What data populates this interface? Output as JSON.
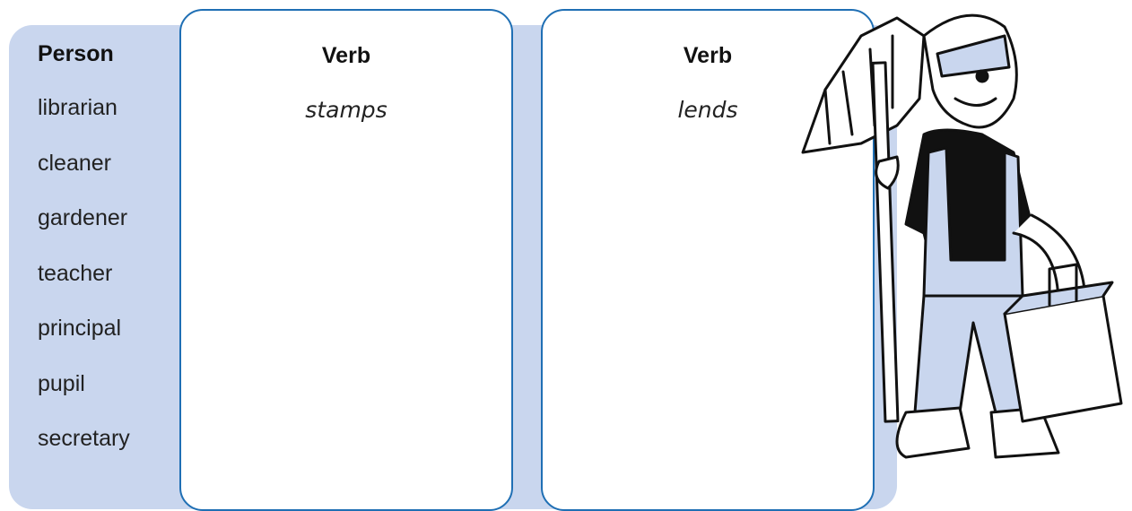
{
  "person_column": {
    "header": "Person",
    "items": [
      "librarian",
      "cleaner",
      "gardener",
      "teacher",
      "principal",
      "pupil",
      "secretary"
    ]
  },
  "verb_columns": [
    {
      "header": "Verb",
      "entries": [
        "stamps"
      ]
    },
    {
      "header": "Verb",
      "entries": [
        "lends"
      ]
    }
  ]
}
